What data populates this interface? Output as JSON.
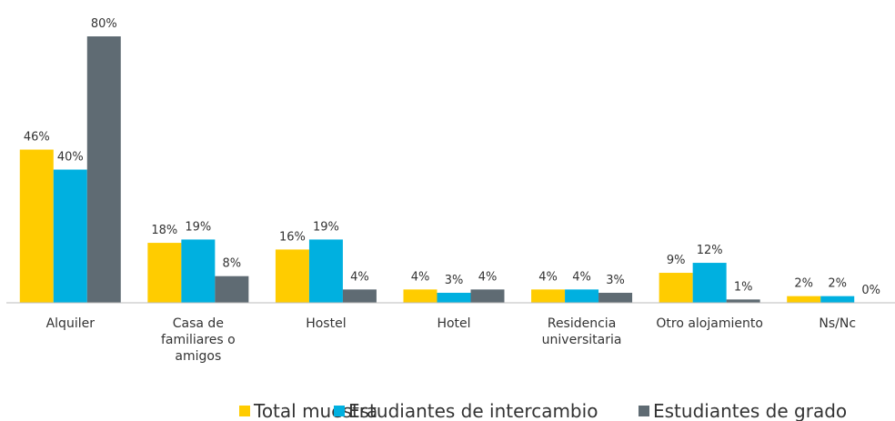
{
  "chart_data": {
    "type": "bar",
    "categories": [
      "Alquiler",
      "Casa de familiares o amigos",
      "Hostel",
      "Hotel",
      "Residencia universitaria",
      "Otro alojamiento",
      "Ns/Nc"
    ],
    "series": [
      {
        "name": "Total muestra",
        "color": "#ffcc00",
        "values": [
          46,
          18,
          16,
          4,
          4,
          9,
          2
        ],
        "value_labels": [
          "46%",
          "18%",
          "16%",
          "4%",
          "4%",
          "9%",
          "2%"
        ]
      },
      {
        "name": "Estudiantes de intercambio",
        "color": "#00b0e0",
        "values": [
          40,
          19,
          19,
          3,
          4,
          12,
          2
        ],
        "value_labels": [
          "40%",
          "19%",
          "19%",
          "3%",
          "4%",
          "12%",
          "2%"
        ]
      },
      {
        "name": "Estudiantes de grado",
        "color": "#5f6b73",
        "values": [
          80,
          8,
          4,
          4,
          3,
          1,
          0
        ],
        "value_labels": [
          "80%",
          "8%",
          "4%",
          "4%",
          "3%",
          "1%",
          "0%"
        ]
      }
    ],
    "ylim": [
      0,
      80
    ]
  }
}
